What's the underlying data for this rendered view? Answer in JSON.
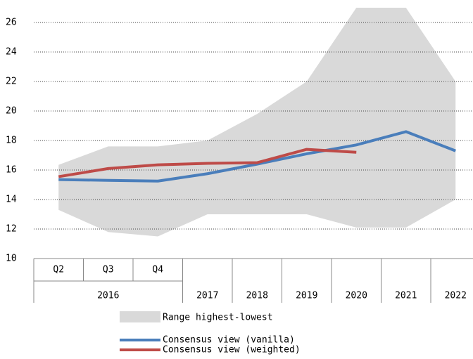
{
  "chart_data": {
    "type": "line",
    "categories": [
      "Q2",
      "Q3",
      "Q4",
      "2017",
      "2018",
      "2019",
      "2020",
      "2021",
      "2022"
    ],
    "category_group": {
      "label": "2016",
      "size": 3
    },
    "ylim": [
      10,
      27
    ],
    "yticks": [
      10,
      12,
      14,
      16,
      18,
      20,
      22,
      24,
      26
    ],
    "grid": true,
    "range": {
      "name": "Range highest-lowest",
      "color": "#d9d9d9",
      "high": [
        16.35,
        17.6,
        17.6,
        18,
        19.8,
        22,
        27,
        27,
        22
      ],
      "low": [
        13.3,
        11.8,
        11.5,
        13,
        13,
        13,
        12.1,
        12.1,
        14
      ]
    },
    "series": [
      {
        "name": "Consensus view (vanilla)",
        "color": "#4a7ebb",
        "values": [
          15.35,
          15.3,
          15.25,
          15.75,
          16.4,
          17.1,
          17.7,
          18.6,
          17.3
        ]
      },
      {
        "name": "Consensus view (weighted)",
        "color": "#be4b48",
        "values": [
          15.55,
          16.1,
          16.35,
          16.45,
          16.5,
          17.4,
          17.2,
          null,
          null
        ]
      }
    ]
  }
}
